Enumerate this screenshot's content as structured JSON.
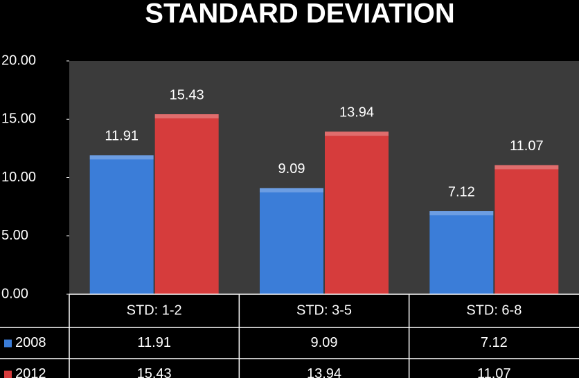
{
  "chart_data": {
    "type": "bar",
    "title": "STANDARD DEVIATION",
    "categories": [
      "STD: 1-2",
      "STD: 3-5",
      "STD: 6-8"
    ],
    "series": [
      {
        "name": "2008",
        "color": "#3b7dd8",
        "values": [
          11.91,
          9.09,
          7.12
        ]
      },
      {
        "name": "2012",
        "color": "#d63c3c",
        "values": [
          15.43,
          13.94,
          11.07
        ]
      }
    ],
    "ylim": [
      0,
      20
    ],
    "yticks": [
      {
        "value": 0,
        "label": "0.00"
      },
      {
        "value": 5,
        "label": "5.00"
      },
      {
        "value": 10,
        "label": "10.00"
      },
      {
        "value": 15,
        "label": "15.00"
      },
      {
        "value": 20,
        "label": "20.00"
      }
    ],
    "data_table": true
  }
}
